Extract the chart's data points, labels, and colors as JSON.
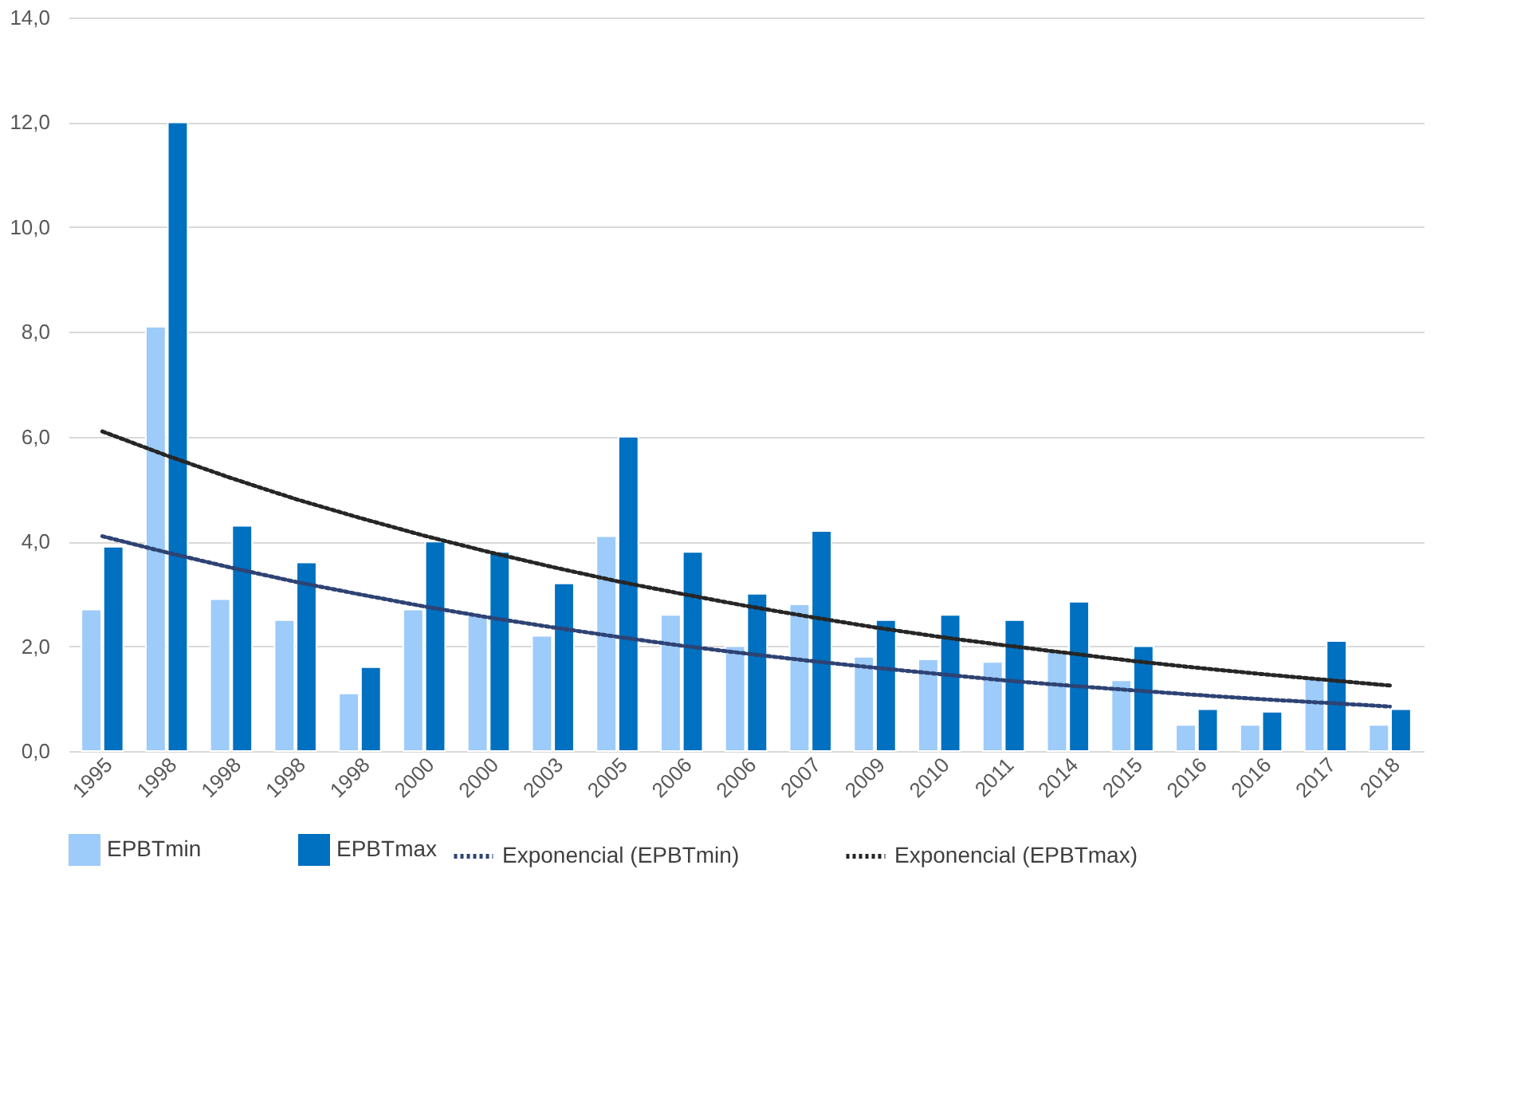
{
  "chart_data": {
    "type": "bar",
    "categories": [
      "1995",
      "1998",
      "1998",
      "1998",
      "1998",
      "2000",
      "2000",
      "2003",
      "2005",
      "2006",
      "2006",
      "2007",
      "2009",
      "2010",
      "2011",
      "2014",
      "2015",
      "2016",
      "2016",
      "2017",
      "2018"
    ],
    "series": [
      {
        "name": "EPBTmin",
        "color": "#9dcbfa",
        "values": [
          2.7,
          8.1,
          2.9,
          2.5,
          1.1,
          2.7,
          2.6,
          2.2,
          4.1,
          2.6,
          2.0,
          2.8,
          1.8,
          1.75,
          1.7,
          1.9,
          1.35,
          0.5,
          0.5,
          1.4,
          0.5
        ]
      },
      {
        "name": "EPBTmax",
        "color": "#0070c0",
        "values": [
          3.9,
          12.0,
          4.3,
          3.6,
          1.6,
          4.0,
          3.8,
          3.2,
          6.0,
          3.8,
          3.0,
          4.2,
          2.5,
          2.6,
          2.5,
          2.85,
          2.0,
          0.8,
          0.75,
          2.1,
          0.8
        ]
      },
      {
        "name": "Exponencial (EPBTmin)",
        "type": "line",
        "line_style": "dotted",
        "color": "#2e4374",
        "values": [
          4.1,
          3.79,
          3.5,
          3.23,
          2.99,
          2.76,
          2.55,
          2.36,
          2.18,
          2.01,
          1.86,
          1.72,
          1.59,
          1.47,
          1.35,
          1.25,
          1.16,
          1.07,
          0.99,
          0.92,
          0.85
        ]
      },
      {
        "name": "Exponencial (EPBTmax)",
        "type": "line",
        "line_style": "dotted",
        "color": "#262626",
        "values": [
          6.1,
          5.64,
          5.21,
          4.81,
          4.45,
          4.11,
          3.8,
          3.51,
          3.24,
          3.0,
          2.77,
          2.56,
          2.36,
          2.18,
          2.02,
          1.87,
          1.72,
          1.59,
          1.47,
          1.36,
          1.25
        ]
      }
    ],
    "ylim": [
      0,
      14
    ],
    "yticks": [
      {
        "value": 0,
        "label": "0,0"
      },
      {
        "value": 2,
        "label": "2,0"
      },
      {
        "value": 4,
        "label": "4,0"
      },
      {
        "value": 6,
        "label": "6,0"
      },
      {
        "value": 8,
        "label": "8,0"
      },
      {
        "value": 10,
        "label": "10,0"
      },
      {
        "value": 12,
        "label": "12,0"
      },
      {
        "value": 14,
        "label": "14,0"
      }
    ],
    "grid": "y",
    "legend": "bottom"
  }
}
